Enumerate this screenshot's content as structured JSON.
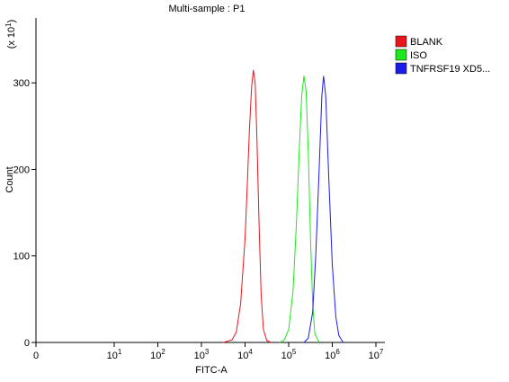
{
  "chart_data": {
    "type": "histogram-overlay",
    "title": "Multi-sample : P1",
    "x_label": "FITC-A",
    "y_label": "Count",
    "y_multiplier": {
      "base": "(x 10",
      "sup": "1",
      "end": ")"
    },
    "xscale": "biexponential",
    "xlim": [
      0,
      15848932
    ],
    "ylim": [
      0,
      375
    ],
    "xticks": [
      {
        "value": 0,
        "label": "0"
      },
      {
        "value": 10,
        "label": "10",
        "sup": "1"
      },
      {
        "value": 100,
        "label": "10",
        "sup": "2"
      },
      {
        "value": 1000,
        "label": "10",
        "sup": "3"
      },
      {
        "value": 10000,
        "label": "10",
        "sup": "4"
      },
      {
        "value": 100000,
        "label": "10",
        "sup": "5"
      },
      {
        "value": 1000000,
        "label": "10",
        "sup": "6"
      },
      {
        "value": 10000000,
        "label": "10",
        "sup": "7"
      }
    ],
    "yticks": [
      0,
      100,
      200,
      300
    ],
    "series": [
      {
        "name": "BLANK",
        "color": "#e8161b",
        "x": [
          3162,
          5012,
          6310,
          7943,
          10000,
          11220,
          12589,
          14125,
          15488,
          16982,
          18621,
          20893,
          23442,
          26303,
          31623,
          39811
        ],
        "values": [
          0,
          3,
          12,
          45,
          120,
          180,
          245,
          295,
          315,
          300,
          240,
          140,
          55,
          15,
          2,
          0
        ]
      },
      {
        "name": "ISO",
        "color": "#1ee81e",
        "x": [
          63096,
          79433,
          100000,
          125893,
          151356,
          177828,
          199526,
          223872,
          251189,
          281838,
          316228,
          354813,
          398107,
          501187
        ],
        "values": [
          0,
          3,
          15,
          60,
          140,
          230,
          285,
          308,
          290,
          220,
          120,
          45,
          10,
          0
        ]
      },
      {
        "name": "TNFRSF19 XD5...",
        "color": "#1c1ce8",
        "x": [
          223872,
          281838,
          354813,
          416869,
          501187,
          575440,
          630957,
          707946,
          831764,
          1000000,
          1202264,
          1412538,
          1778279
        ],
        "values": [
          0,
          5,
          35,
          100,
          200,
          285,
          308,
          285,
          190,
          90,
          30,
          8,
          0
        ]
      }
    ]
  }
}
